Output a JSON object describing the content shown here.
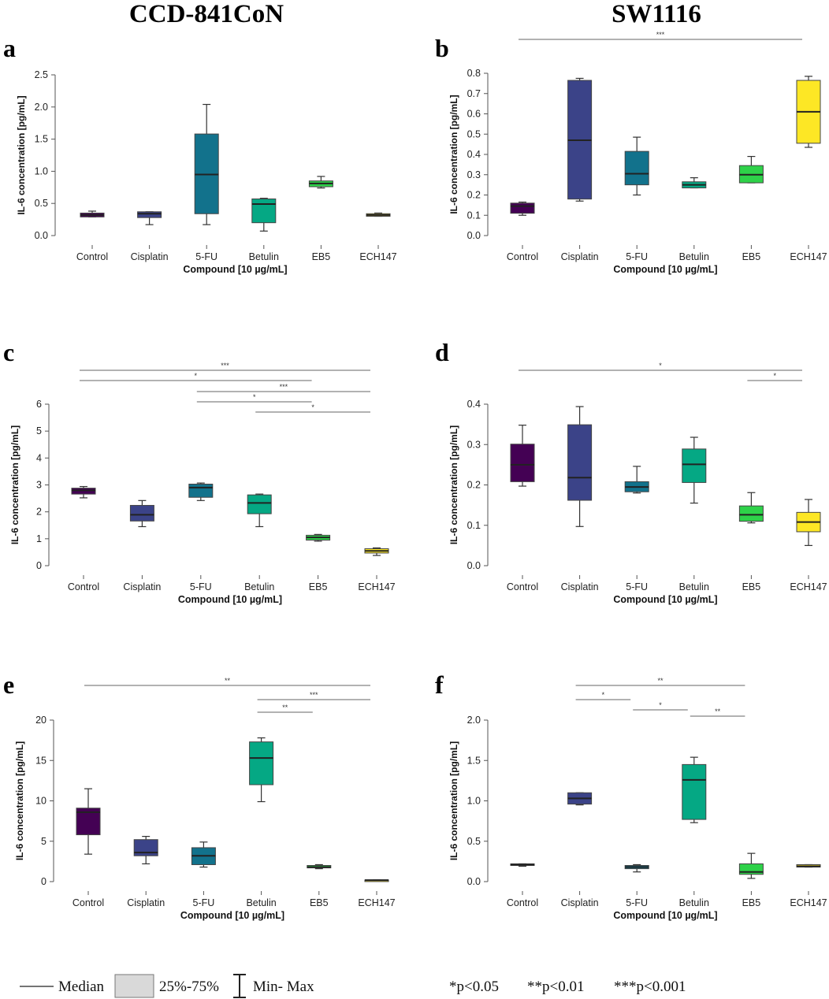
{
  "titles": {
    "left": "CCD-841CoN",
    "right": "SW1116"
  },
  "legend": {
    "median": "Median",
    "iqr": "25%-75%",
    "range": "Min- Max",
    "p1": "*p<0.05",
    "p2": "**p<0.01",
    "p3": "***p<0.001"
  },
  "colors": {
    "Control": "#440154",
    "Cisplatin": "#3b4388",
    "5-FU": "#12728c",
    "Betulin": "#05a884",
    "EB5": "#2ed249",
    "ECH147": "#fde725"
  },
  "chart_data": [
    {
      "panel": "a",
      "type": "box",
      "cell_line": "CCD-841CoN",
      "ylabel": "IL-6 concentration [pg/mL]",
      "xlabel": "Compound [10 µg/mL]",
      "categories": [
        "Control",
        "Cisplatin",
        "5-FU",
        "Betulin",
        "EB5",
        "ECH147"
      ],
      "ylim": [
        0,
        2.5
      ],
      "yticks": [
        "0.0",
        "0.5",
        "1.0",
        "1.5",
        "2.0",
        "2.5"
      ],
      "boxes": [
        [
          0.29,
          0.29,
          0.32,
          0.35,
          0.38
        ],
        [
          0.17,
          0.28,
          0.34,
          0.37,
          0.37
        ],
        [
          0.17,
          0.34,
          0.95,
          1.58,
          2.04
        ],
        [
          0.07,
          0.2,
          0.49,
          0.57,
          0.58
        ],
        [
          0.74,
          0.76,
          0.81,
          0.85,
          0.92
        ],
        [
          0.3,
          0.3,
          0.32,
          0.34,
          0.35
        ]
      ],
      "significance": []
    },
    {
      "panel": "b",
      "type": "box",
      "cell_line": "SW1116",
      "ylabel": "IL-6 concentration [pg/mL]",
      "xlabel": "Compound [10 µg/mL]",
      "categories": [
        "Control",
        "Cisplatin",
        "5-FU",
        "Betulin",
        "EB5",
        "ECH147"
      ],
      "ylim": [
        0,
        0.8
      ],
      "yticks": [
        "0.0",
        "0.1",
        "0.2",
        "0.3",
        "0.4",
        "0.5",
        "0.6",
        "0.7",
        "0.8"
      ],
      "boxes": [
        [
          0.1,
          0.11,
          0.145,
          0.16,
          0.165
        ],
        [
          0.17,
          0.18,
          0.47,
          0.765,
          0.775
        ],
        [
          0.2,
          0.25,
          0.305,
          0.415,
          0.485
        ],
        [
          0.235,
          0.235,
          0.25,
          0.265,
          0.285
        ],
        [
          0.26,
          0.26,
          0.3,
          0.345,
          0.39
        ],
        [
          0.435,
          0.455,
          0.61,
          0.765,
          0.785
        ]
      ],
      "significance": [
        {
          "from": "Control",
          "to": "ECH147",
          "label": "***"
        }
      ]
    },
    {
      "panel": "c",
      "type": "box",
      "cell_line": "CCD-841CoN",
      "ylabel": "IL-6 concentration [pg/mL]",
      "xlabel": "Compound [10 µg/mL]",
      "categories": [
        "Control",
        "Cisplatin",
        "5-FU",
        "Betulin",
        "EB5",
        "ECH147"
      ],
      "ylim": [
        0,
        6
      ],
      "yticks": [
        "0",
        "1",
        "2",
        "3",
        "4",
        "5",
        "6"
      ],
      "boxes": [
        [
          2.52,
          2.66,
          2.8,
          2.88,
          2.94
        ],
        [
          1.45,
          1.66,
          1.89,
          2.24,
          2.42
        ],
        [
          2.42,
          2.54,
          2.9,
          3.03,
          3.07
        ],
        [
          1.45,
          1.93,
          2.33,
          2.63,
          2.66
        ],
        [
          0.91,
          0.95,
          1.05,
          1.13,
          1.16
        ],
        [
          0.38,
          0.47,
          0.55,
          0.63,
          0.66
        ]
      ],
      "significance": [
        {
          "from": "Control",
          "to": "ECH147",
          "label": "***"
        },
        {
          "from": "Control",
          "to": "EB5",
          "label": "*"
        },
        {
          "from": "5-FU",
          "to": "ECH147",
          "label": "***"
        },
        {
          "from": "5-FU",
          "to": "EB5",
          "label": "*"
        },
        {
          "from": "Betulin",
          "to": "ECH147",
          "label": "*"
        }
      ]
    },
    {
      "panel": "d",
      "type": "box",
      "cell_line": "SW1116",
      "ylabel": "IL-6 concentration [pg/mL]",
      "xlabel": "Compound [10 µg/mL]",
      "categories": [
        "Control",
        "Cisplatin",
        "5-FU",
        "Betulin",
        "EB5",
        "ECH147"
      ],
      "ylim": [
        0,
        0.4
      ],
      "yticks": [
        "0.0",
        "0.1",
        "0.2",
        "0.3",
        "0.4"
      ],
      "boxes": [
        [
          0.197,
          0.208,
          0.25,
          0.301,
          0.348
        ],
        [
          0.097,
          0.162,
          0.218,
          0.349,
          0.394
        ],
        [
          0.18,
          0.183,
          0.195,
          0.208,
          0.246
        ],
        [
          0.155,
          0.206,
          0.251,
          0.289,
          0.318
        ],
        [
          0.106,
          0.11,
          0.126,
          0.148,
          0.181
        ],
        [
          0.05,
          0.084,
          0.108,
          0.132,
          0.164
        ]
      ],
      "significance": [
        {
          "from": "Control",
          "to": "ECH147",
          "label": "*"
        },
        {
          "from": "EB5",
          "to": "ECH147",
          "label": "*"
        }
      ]
    },
    {
      "panel": "e",
      "type": "box",
      "cell_line": "CCD-841CoN",
      "ylabel": "IL-6 concentration [pg/mL]",
      "xlabel": "Compound [10 µg/mL]",
      "categories": [
        "Control",
        "Cisplatin",
        "5-FU",
        "Betulin",
        "EB5",
        "ECH147"
      ],
      "ylim": [
        0,
        20
      ],
      "yticks": [
        "0",
        "5",
        "10",
        "15",
        "20"
      ],
      "boxes": [
        [
          3.4,
          5.8,
          8.6,
          9.1,
          11.5
        ],
        [
          2.2,
          3.2,
          3.6,
          5.2,
          5.6
        ],
        [
          1.8,
          2.1,
          3.2,
          4.2,
          4.9
        ],
        [
          9.9,
          12.0,
          15.3,
          17.3,
          17.8
        ],
        [
          1.6,
          1.7,
          1.8,
          2.0,
          2.1
        ],
        [
          0.15,
          0.15,
          0.18,
          0.2,
          0.2
        ]
      ],
      "significance": [
        {
          "from": "Control",
          "to": "ECH147",
          "label": "**"
        },
        {
          "from": "Betulin",
          "to": "ECH147",
          "label": "***"
        },
        {
          "from": "Betulin",
          "to": "EB5",
          "label": "**"
        }
      ]
    },
    {
      "panel": "f",
      "type": "box",
      "cell_line": "SW1116",
      "ylabel": "IL-6 concentration [pg/mL]",
      "xlabel": "Compound [10 µg/mL]",
      "categories": [
        "Control",
        "Cisplatin",
        "5-FU",
        "Betulin",
        "EB5",
        "ECH147"
      ],
      "ylim": [
        0,
        2.0
      ],
      "yticks": [
        "0.0",
        "0.5",
        "1.0",
        "1.5",
        "2.0"
      ],
      "boxes": [
        [
          0.19,
          0.2,
          0.21,
          0.22,
          0.22
        ],
        [
          0.95,
          0.96,
          1.03,
          1.1,
          1.1
        ],
        [
          0.12,
          0.16,
          0.18,
          0.2,
          0.21
        ],
        [
          0.73,
          0.77,
          1.26,
          1.45,
          1.54
        ],
        [
          0.04,
          0.09,
          0.12,
          0.22,
          0.35
        ],
        [
          0.18,
          0.18,
          0.19,
          0.21,
          0.21
        ]
      ],
      "significance": [
        {
          "from": "Cisplatin",
          "to": "EB5",
          "label": "**"
        },
        {
          "from": "Cisplatin",
          "to": "5-FU",
          "label": "*"
        },
        {
          "from": "5-FU",
          "to": "Betulin",
          "label": "*"
        },
        {
          "from": "Betulin",
          "to": "EB5",
          "label": "**"
        }
      ]
    }
  ]
}
